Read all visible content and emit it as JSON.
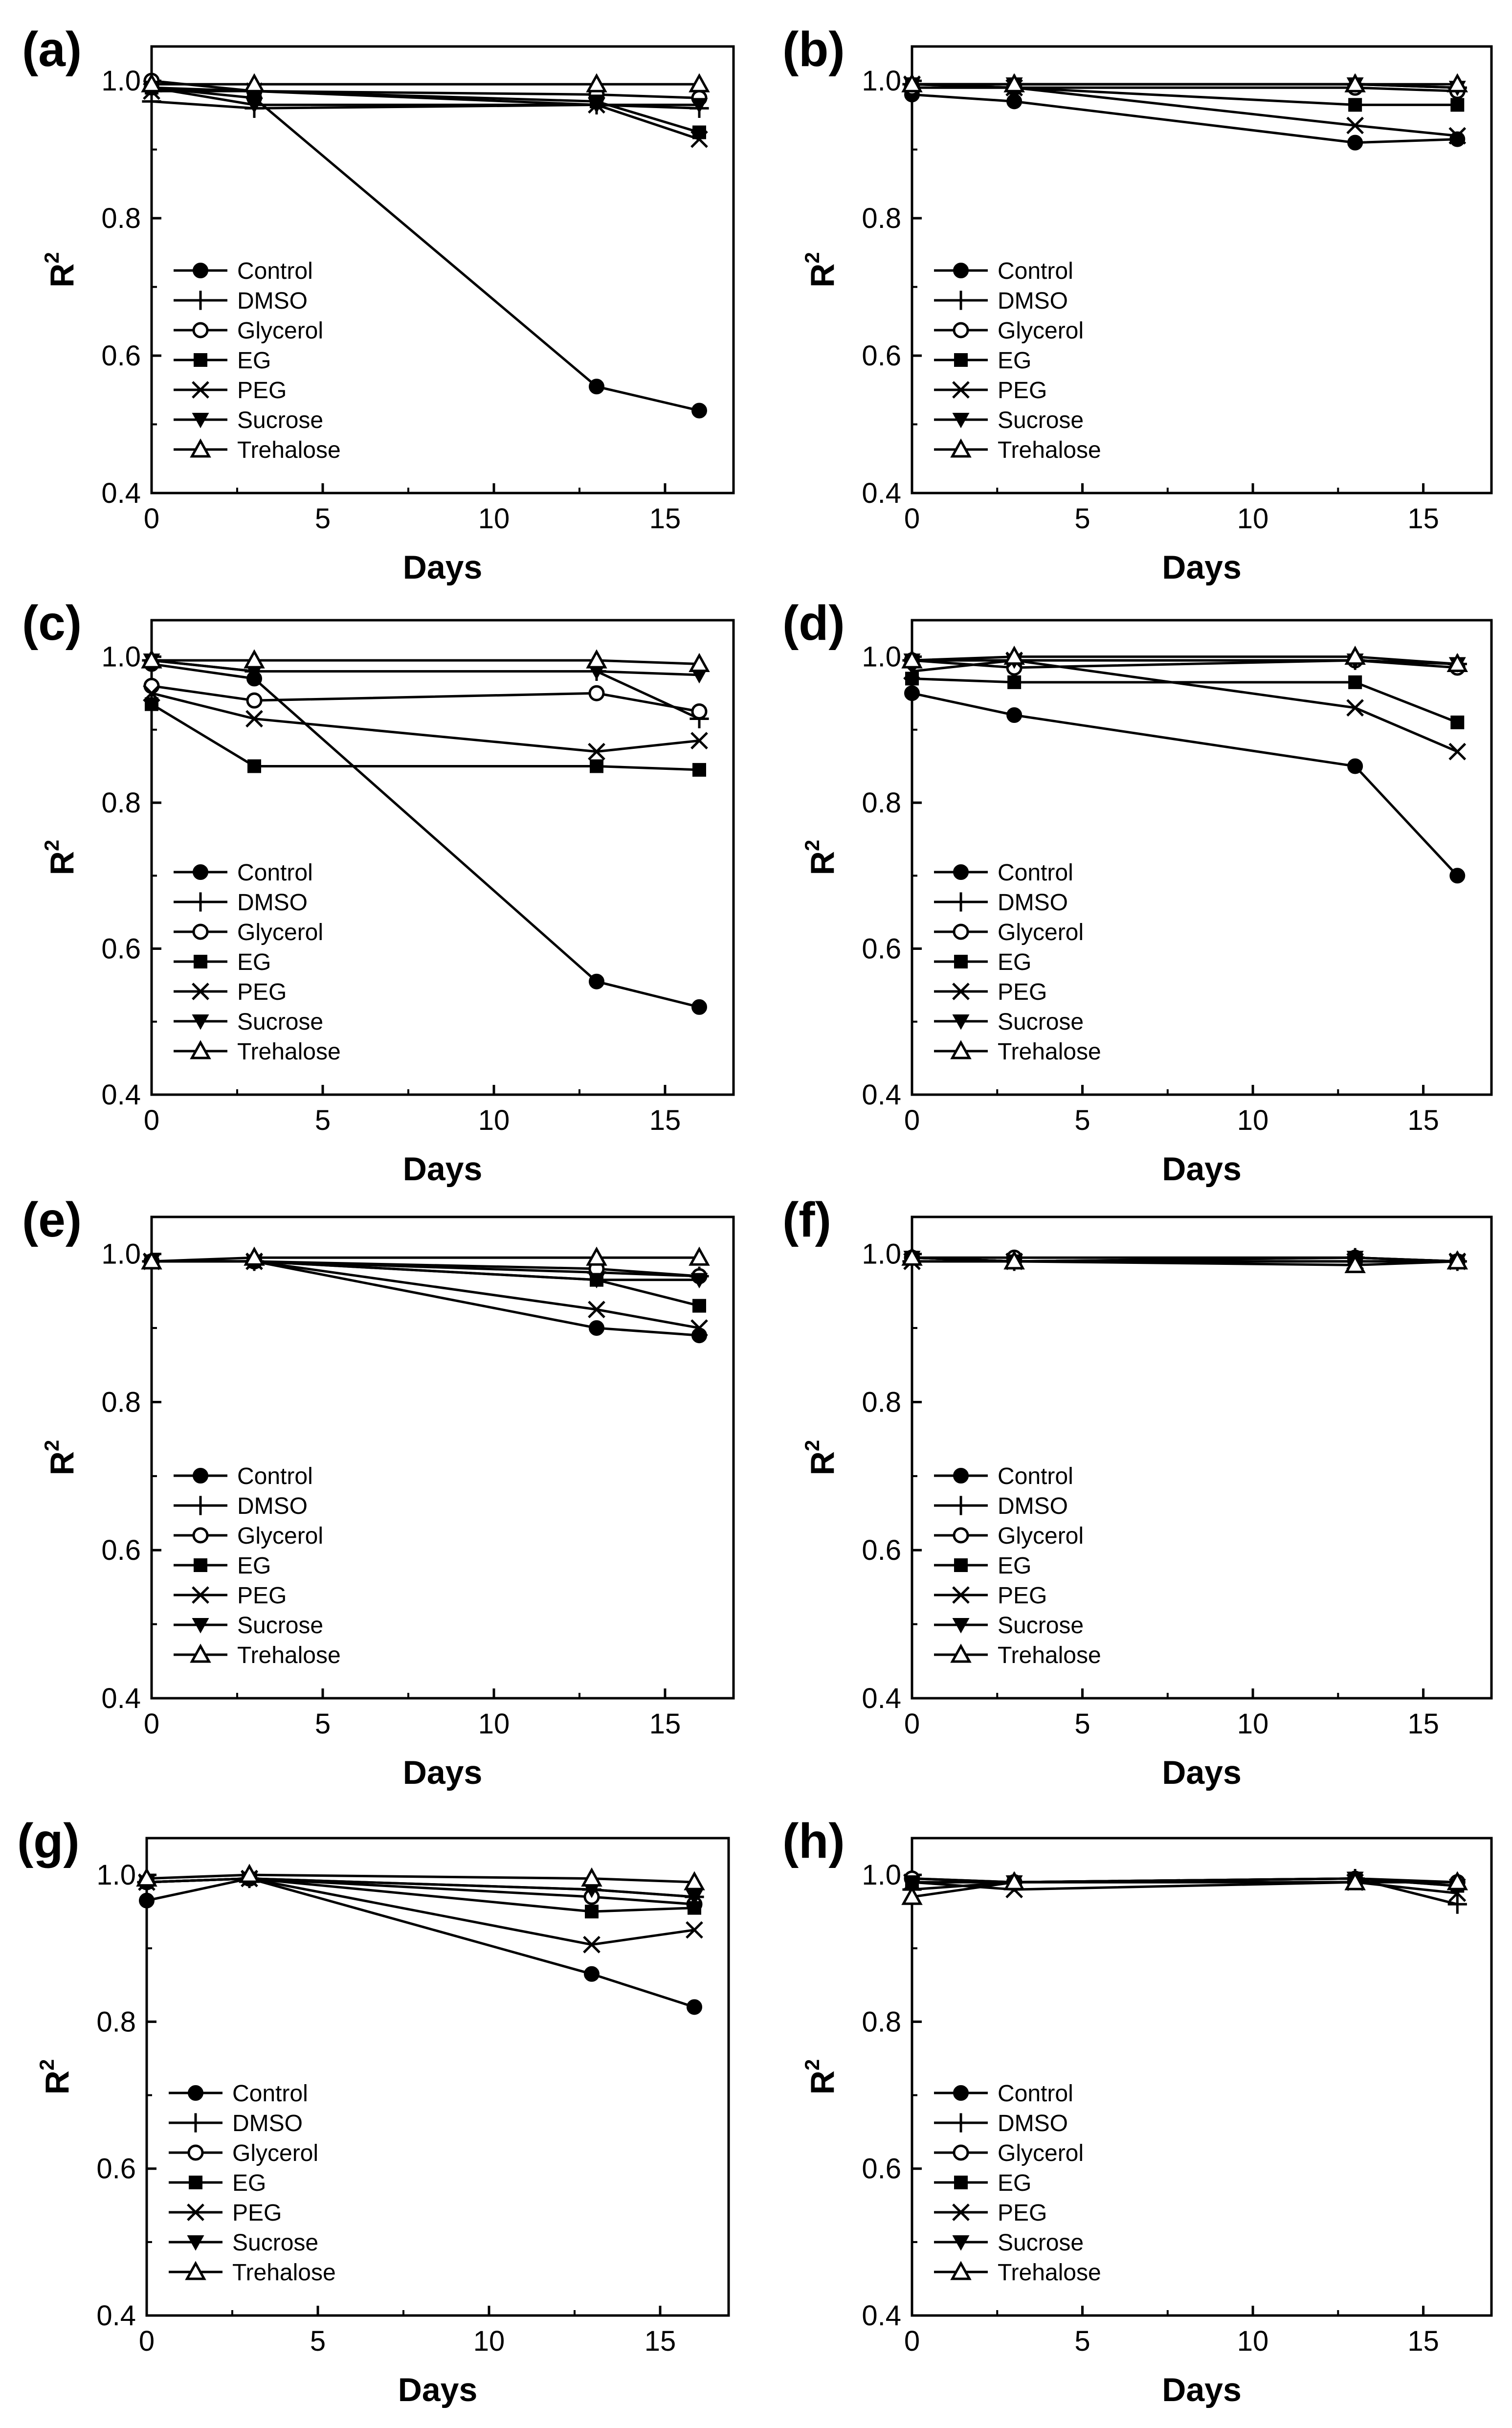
{
  "legend_labels": [
    "Control",
    "DMSO",
    "Glycerol",
    "EG",
    "PEG",
    "Sucrose",
    "Trehalose"
  ],
  "chart_data": [
    {
      "type": "line",
      "panel_label": "(a)",
      "xlabel": "Days",
      "ylabel": "R",
      "ylabel_sup": "2",
      "xlim": [
        0,
        17
      ],
      "ylim": [
        0.4,
        1.05
      ],
      "xticks": [
        0,
        5,
        10,
        15
      ],
      "yticks": [
        0.4,
        0.6,
        0.8,
        1.0
      ],
      "x": [
        0,
        3,
        13,
        16
      ],
      "legend_position": "bottom-left",
      "series": [
        {
          "name": "Control",
          "marker": "circle-filled",
          "values": [
            0.99,
            0.975,
            0.555,
            0.52
          ]
        },
        {
          "name": "DMSO",
          "marker": "plus",
          "values": [
            0.97,
            0.96,
            0.965,
            0.96
          ]
        },
        {
          "name": "Glycerol",
          "marker": "circle-open",
          "values": [
            1.0,
            0.985,
            0.98,
            0.975
          ]
        },
        {
          "name": "EG",
          "marker": "square-filled",
          "values": [
            0.99,
            0.985,
            0.97,
            0.925
          ]
        },
        {
          "name": "PEG",
          "marker": "x",
          "values": [
            0.985,
            0.985,
            0.965,
            0.915
          ]
        },
        {
          "name": "Sucrose",
          "marker": "triangle-down-filled",
          "values": [
            0.99,
            0.965,
            0.965,
            0.965
          ]
        },
        {
          "name": "Trehalose",
          "marker": "triangle-up-open",
          "values": [
            0.995,
            0.995,
            0.995,
            0.995
          ]
        }
      ]
    },
    {
      "type": "line",
      "panel_label": "(b)",
      "xlabel": "Days",
      "ylabel": "R",
      "ylabel_sup": "2",
      "xlim": [
        0,
        17
      ],
      "ylim": [
        0.4,
        1.05
      ],
      "xticks": [
        0,
        5,
        10,
        15
      ],
      "yticks": [
        0.4,
        0.6,
        0.8,
        1.0
      ],
      "x": [
        0,
        3,
        13,
        16
      ],
      "legend_position": "bottom-left",
      "series": [
        {
          "name": "Control",
          "marker": "circle-filled",
          "values": [
            0.98,
            0.97,
            0.91,
            0.915
          ]
        },
        {
          "name": "DMSO",
          "marker": "plus",
          "values": [
            0.995,
            0.995,
            0.995,
            0.99
          ]
        },
        {
          "name": "Glycerol",
          "marker": "circle-open",
          "values": [
            0.99,
            0.99,
            0.99,
            0.985
          ]
        },
        {
          "name": "EG",
          "marker": "square-filled",
          "values": [
            0.995,
            0.99,
            0.965,
            0.965
          ]
        },
        {
          "name": "PEG",
          "marker": "x",
          "values": [
            0.995,
            0.99,
            0.935,
            0.92
          ]
        },
        {
          "name": "Sucrose",
          "marker": "triangle-down-filled",
          "values": [
            0.995,
            0.995,
            0.995,
            0.99
          ]
        },
        {
          "name": "Trehalose",
          "marker": "triangle-up-open",
          "values": [
            0.995,
            0.995,
            0.995,
            0.995
          ]
        }
      ]
    },
    {
      "type": "line",
      "panel_label": "(c)",
      "xlabel": "Days",
      "ylabel": "R",
      "ylabel_sup": "2",
      "xlim": [
        0,
        17
      ],
      "ylim": [
        0.4,
        1.05
      ],
      "xticks": [
        0,
        5,
        10,
        15
      ],
      "yticks": [
        0.4,
        0.6,
        0.8,
        1.0
      ],
      "x": [
        0,
        3,
        13,
        16
      ],
      "legend_position": "bottom-left",
      "series": [
        {
          "name": "Control",
          "marker": "circle-filled",
          "values": [
            0.99,
            0.97,
            0.555,
            0.52
          ]
        },
        {
          "name": "DMSO",
          "marker": "plus",
          "values": [
            0.995,
            0.98,
            0.98,
            0.915
          ]
        },
        {
          "name": "Glycerol",
          "marker": "circle-open",
          "values": [
            0.96,
            0.94,
            0.95,
            0.925
          ]
        },
        {
          "name": "EG",
          "marker": "square-filled",
          "values": [
            0.935,
            0.85,
            0.85,
            0.845
          ]
        },
        {
          "name": "PEG",
          "marker": "x",
          "values": [
            0.95,
            0.915,
            0.87,
            0.885
          ]
        },
        {
          "name": "Sucrose",
          "marker": "triangle-down-filled",
          "values": [
            0.995,
            0.98,
            0.98,
            0.975
          ]
        },
        {
          "name": "Trehalose",
          "marker": "triangle-up-open",
          "values": [
            0.995,
            0.995,
            0.995,
            0.99
          ]
        }
      ]
    },
    {
      "type": "line",
      "panel_label": "(d)",
      "xlabel": "Days",
      "ylabel": "R",
      "ylabel_sup": "2",
      "xlim": [
        0,
        17
      ],
      "ylim": [
        0.4,
        1.05
      ],
      "xticks": [
        0,
        5,
        10,
        15
      ],
      "yticks": [
        0.4,
        0.6,
        0.8,
        1.0
      ],
      "x": [
        0,
        3,
        13,
        16
      ],
      "legend_position": "bottom-left",
      "series": [
        {
          "name": "Control",
          "marker": "circle-filled",
          "values": [
            0.95,
            0.92,
            0.85,
            0.7
          ]
        },
        {
          "name": "DMSO",
          "marker": "plus",
          "values": [
            0.995,
            0.995,
            0.995,
            0.99
          ]
        },
        {
          "name": "Glycerol",
          "marker": "circle-open",
          "values": [
            0.995,
            0.985,
            0.995,
            0.985
          ]
        },
        {
          "name": "EG",
          "marker": "square-filled",
          "values": [
            0.97,
            0.965,
            0.965,
            0.91
          ]
        },
        {
          "name": "PEG",
          "marker": "x",
          "values": [
            0.98,
            0.995,
            0.93,
            0.87
          ]
        },
        {
          "name": "Sucrose",
          "marker": "triangle-down-filled",
          "values": [
            0.995,
            0.995,
            0.995,
            0.99
          ]
        },
        {
          "name": "Trehalose",
          "marker": "triangle-up-open",
          "values": [
            0.995,
            1.0,
            1.0,
            0.99
          ]
        }
      ]
    },
    {
      "type": "line",
      "panel_label": "(e)",
      "xlabel": "Days",
      "ylabel": "R",
      "ylabel_sup": "2",
      "xlim": [
        0,
        17
      ],
      "ylim": [
        0.4,
        1.05
      ],
      "xticks": [
        0,
        5,
        10,
        15
      ],
      "yticks": [
        0.4,
        0.6,
        0.8,
        1.0
      ],
      "x": [
        0,
        3,
        13,
        16
      ],
      "legend_position": "bottom-left",
      "series": [
        {
          "name": "Control",
          "marker": "circle-filled",
          "values": [
            0.99,
            0.99,
            0.9,
            0.89
          ]
        },
        {
          "name": "DMSO",
          "marker": "plus",
          "values": [
            0.99,
            0.99,
            0.975,
            0.97
          ]
        },
        {
          "name": "Glycerol",
          "marker": "circle-open",
          "values": [
            0.99,
            0.99,
            0.98,
            0.97
          ]
        },
        {
          "name": "EG",
          "marker": "square-filled",
          "values": [
            0.99,
            0.99,
            0.965,
            0.93
          ]
        },
        {
          "name": "PEG",
          "marker": "x",
          "values": [
            0.99,
            0.99,
            0.925,
            0.9
          ]
        },
        {
          "name": "Sucrose",
          "marker": "triangle-down-filled",
          "values": [
            0.99,
            0.99,
            0.965,
            0.965
          ]
        },
        {
          "name": "Trehalose",
          "marker": "triangle-up-open",
          "values": [
            0.99,
            0.995,
            0.995,
            0.995
          ]
        }
      ]
    },
    {
      "type": "line",
      "panel_label": "(f)",
      "xlabel": "Days",
      "ylabel": "R",
      "ylabel_sup": "2",
      "xlim": [
        0,
        17
      ],
      "ylim": [
        0.4,
        1.05
      ],
      "xticks": [
        0,
        5,
        10,
        15
      ],
      "yticks": [
        0.4,
        0.6,
        0.8,
        1.0
      ],
      "x": [
        0,
        3,
        13,
        16
      ],
      "legend_position": "bottom-left",
      "series": [
        {
          "name": "Control",
          "marker": "circle-filled",
          "values": [
            0.995,
            0.99,
            0.99,
            0.99
          ]
        },
        {
          "name": "DMSO",
          "marker": "plus",
          "values": [
            0.99,
            0.99,
            0.995,
            0.99
          ]
        },
        {
          "name": "Glycerol",
          "marker": "circle-open",
          "values": [
            0.995,
            0.995,
            0.995,
            0.99
          ]
        },
        {
          "name": "EG",
          "marker": "square-filled",
          "values": [
            0.995,
            0.99,
            0.99,
            0.99
          ]
        },
        {
          "name": "PEG",
          "marker": "x",
          "values": [
            0.99,
            0.99,
            0.99,
            0.99
          ]
        },
        {
          "name": "Sucrose",
          "marker": "triangle-down-filled",
          "values": [
            0.995,
            0.99,
            0.995,
            0.99
          ]
        },
        {
          "name": "Trehalose",
          "marker": "triangle-up-open",
          "values": [
            0.995,
            0.99,
            0.985,
            0.99
          ]
        }
      ]
    },
    {
      "type": "line",
      "panel_label": "(g)",
      "xlabel": "Days",
      "ylabel": "R",
      "ylabel_sup": "2",
      "xlim": [
        0,
        17
      ],
      "ylim": [
        0.4,
        1.05
      ],
      "xticks": [
        0,
        5,
        10,
        15
      ],
      "yticks": [
        0.4,
        0.6,
        0.8,
        1.0
      ],
      "x": [
        0,
        3,
        13,
        16
      ],
      "legend_position": "bottom-left",
      "series": [
        {
          "name": "Control",
          "marker": "circle-filled",
          "values": [
            0.965,
            0.995,
            0.865,
            0.82
          ]
        },
        {
          "name": "DMSO",
          "marker": "plus",
          "values": [
            0.99,
            0.995,
            0.98,
            0.97
          ]
        },
        {
          "name": "Glycerol",
          "marker": "circle-open",
          "values": [
            0.99,
            0.995,
            0.97,
            0.96
          ]
        },
        {
          "name": "EG",
          "marker": "square-filled",
          "values": [
            0.99,
            0.995,
            0.95,
            0.955
          ]
        },
        {
          "name": "PEG",
          "marker": "x",
          "values": [
            0.99,
            0.995,
            0.905,
            0.925
          ]
        },
        {
          "name": "Sucrose",
          "marker": "triangle-down-filled",
          "values": [
            0.99,
            0.995,
            0.98,
            0.97
          ]
        },
        {
          "name": "Trehalose",
          "marker": "triangle-up-open",
          "values": [
            0.995,
            1.0,
            0.995,
            0.99
          ]
        }
      ]
    },
    {
      "type": "line",
      "panel_label": "(h)",
      "xlabel": "Days",
      "ylabel": "R",
      "ylabel_sup": "2",
      "xlim": [
        0,
        17
      ],
      "ylim": [
        0.4,
        1.05
      ],
      "xticks": [
        0,
        5,
        10,
        15
      ],
      "yticks": [
        0.4,
        0.6,
        0.8,
        1.0
      ],
      "x": [
        0,
        3,
        13,
        16
      ],
      "legend_position": "bottom-left",
      "series": [
        {
          "name": "Control",
          "marker": "circle-filled",
          "values": [
            0.995,
            0.99,
            0.995,
            0.99
          ]
        },
        {
          "name": "DMSO",
          "marker": "plus",
          "values": [
            0.98,
            0.99,
            0.995,
            0.96
          ]
        },
        {
          "name": "Glycerol",
          "marker": "circle-open",
          "values": [
            0.995,
            0.99,
            0.99,
            0.99
          ]
        },
        {
          "name": "EG",
          "marker": "square-filled",
          "values": [
            0.99,
            0.99,
            0.995,
            0.985
          ]
        },
        {
          "name": "PEG",
          "marker": "x",
          "values": [
            0.99,
            0.98,
            0.99,
            0.975
          ]
        },
        {
          "name": "Sucrose",
          "marker": "triangle-down-filled",
          "values": [
            0.99,
            0.99,
            0.995,
            0.985
          ]
        },
        {
          "name": "Trehalose",
          "marker": "triangle-up-open",
          "values": [
            0.97,
            0.99,
            0.99,
            0.99
          ]
        }
      ]
    }
  ]
}
